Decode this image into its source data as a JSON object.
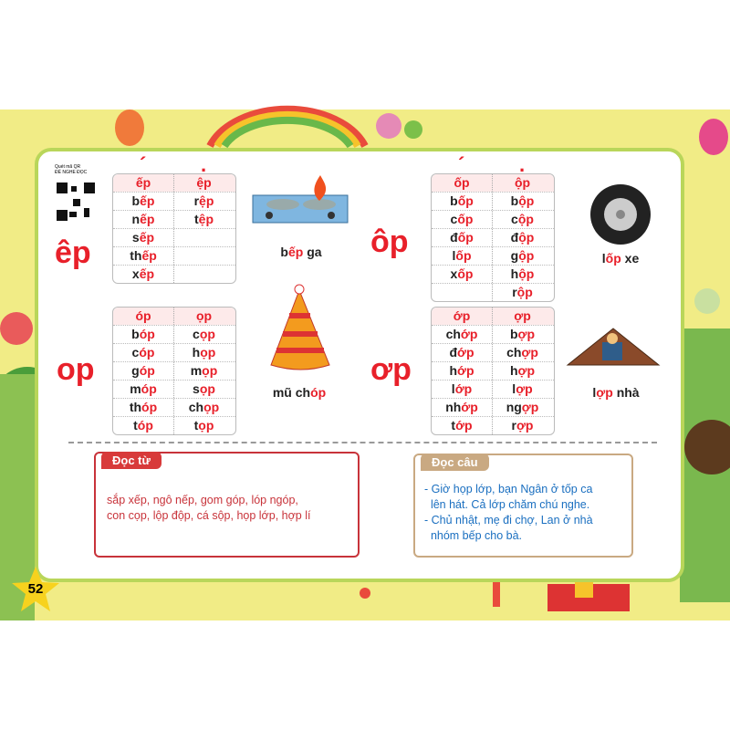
{
  "qr_note": [
    "Quét mã QR",
    "ĐỂ NGHE ĐỌC"
  ],
  "groups": [
    {
      "rhyme": "êp",
      "tones": [
        "´",
        "."
      ],
      "header": [
        "ếp",
        "ệp"
      ],
      "rows": [
        [
          [
            "b",
            "ếp"
          ],
          [
            "r",
            "ệp"
          ]
        ],
        [
          [
            "n",
            "ếp"
          ],
          [
            "t",
            "ệp"
          ]
        ],
        [
          [
            "s",
            "ếp"
          ],
          null
        ],
        [
          [
            "th",
            "ếp"
          ],
          null
        ],
        [
          [
            "x",
            "ếp"
          ],
          null
        ]
      ],
      "caption": [
        "b",
        "ếp",
        " ga"
      ]
    },
    {
      "rhyme": "ôp",
      "tones": [
        "´",
        "."
      ],
      "header": [
        "ốp",
        "ộp"
      ],
      "rows": [
        [
          [
            "b",
            "ốp"
          ],
          [
            "b",
            "ộp"
          ]
        ],
        [
          [
            "c",
            "ốp"
          ],
          [
            "c",
            "ộp"
          ]
        ],
        [
          [
            "đ",
            "ốp"
          ],
          [
            "đ",
            "ộp"
          ]
        ],
        [
          [
            "l",
            "ốp"
          ],
          [
            "g",
            "ộp"
          ]
        ],
        [
          [
            "x",
            "ốp"
          ],
          [
            "h",
            "ộp"
          ]
        ],
        [
          null,
          [
            "r",
            "ộp"
          ]
        ]
      ],
      "caption": [
        "l",
        "ốp",
        " xe"
      ]
    },
    {
      "rhyme": "op",
      "header": [
        "óp",
        "ọp"
      ],
      "rows": [
        [
          [
            "b",
            "óp"
          ],
          [
            "c",
            "ọp"
          ]
        ],
        [
          [
            "c",
            "óp"
          ],
          [
            "h",
            "ọp"
          ]
        ],
        [
          [
            "g",
            "óp"
          ],
          [
            "m",
            "ọp"
          ]
        ],
        [
          [
            "m",
            "óp"
          ],
          [
            "s",
            "ọp"
          ]
        ],
        [
          [
            "th",
            "óp"
          ],
          [
            "ch",
            "ọp"
          ]
        ],
        [
          [
            "t",
            "óp"
          ],
          [
            "t",
            "ọp"
          ]
        ]
      ],
      "caption": [
        "mũ ch",
        "óp"
      ]
    },
    {
      "rhyme": "ơp",
      "header": [
        "ớp",
        "ợp"
      ],
      "rows": [
        [
          [
            "ch",
            "ớp"
          ],
          [
            "b",
            "ợp"
          ]
        ],
        [
          [
            "đ",
            "ớp"
          ],
          [
            "ch",
            "ợp"
          ]
        ],
        [
          [
            "h",
            "ớp"
          ],
          [
            "h",
            "ợp"
          ]
        ],
        [
          [
            "l",
            "ớp"
          ],
          [
            "l",
            "ợp"
          ]
        ],
        [
          [
            "nh",
            "ớp"
          ],
          [
            "ng",
            "ợp"
          ]
        ],
        [
          [
            "t",
            "ớp"
          ],
          [
            "r",
            "ợp"
          ]
        ]
      ],
      "caption": [
        "l",
        "ợp",
        " nhà"
      ]
    }
  ],
  "reading": [
    {
      "title": "Đọc từ",
      "lines": [
        "sắp xếp, ngô nếp, gom góp, lóp ngóp,",
        "con cọp, lộp độp, cá sộp, họp lớp, hợp lí"
      ]
    },
    {
      "title": "Đọc câu",
      "lines": [
        "- Giờ họp lớp, bạn Ngân ở tốp ca",
        "  lên hát. Cả lớp chăm chú nghe.",
        "- Chủ nhật, mẹ đi chợ, Lan ở nhà",
        "  nhóm bếp cho bà."
      ]
    }
  ],
  "page_number": "52"
}
